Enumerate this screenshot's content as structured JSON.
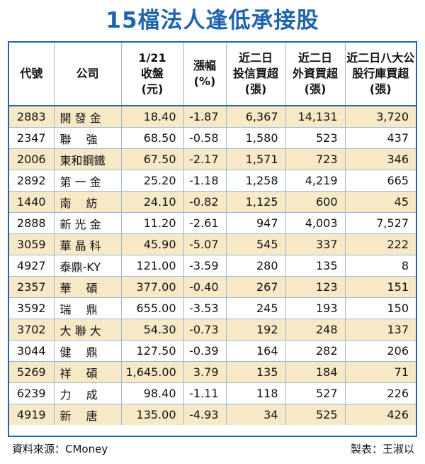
{
  "title": "15檔法人逢低承接股",
  "headers": [
    [
      "代號"
    ],
    [
      "公司"
    ],
    [
      "1/21",
      "收盤",
      "(元)"
    ],
    [
      "漲幅",
      "(%)"
    ],
    [
      "近二日",
      "投信買超",
      "(張)"
    ],
    [
      "近二日",
      "外資買超",
      "(張)"
    ],
    [
      "近二日八大公",
      "股行庫買超",
      "(張)"
    ]
  ],
  "rows": [
    [
      "2883",
      "開 發 金",
      "18.40",
      "-1.87",
      "6,367",
      "14,131",
      "3,720"
    ],
    [
      "2347",
      "聯　 強",
      "68.50",
      "-0.58",
      "1,580",
      "523",
      "437"
    ],
    [
      "2006",
      "東和鋼鐵",
      "67.50",
      "-2.17",
      "1,571",
      "723",
      "346"
    ],
    [
      "2892",
      "第 一 金",
      "25.20",
      "-1.18",
      "1,258",
      "4,219",
      "665"
    ],
    [
      "1440",
      "南　 紡",
      "24.10",
      "-0.82",
      "1,125",
      "600",
      "45"
    ],
    [
      "2888",
      "新 光 金",
      "11.20",
      "-2.61",
      "947",
      "4,003",
      "7,527"
    ],
    [
      "3059",
      "華 晶 科",
      "45.90",
      "-5.07",
      "545",
      "337",
      "222"
    ],
    [
      "4927",
      "泰鼎-KY",
      "121.00",
      "-3.59",
      "280",
      "135",
      "8"
    ],
    [
      "2357",
      "華　 碩",
      "377.00",
      "-0.40",
      "267",
      "123",
      "151"
    ],
    [
      "3592",
      "瑞　 鼎",
      "655.00",
      "-3.53",
      "245",
      "193",
      "150"
    ],
    [
      "3702",
      "大 聯 大",
      "54.30",
      "-0.73",
      "192",
      "248",
      "137"
    ],
    [
      "3044",
      "健　 鼎",
      "127.50",
      "-0.39",
      "164",
      "282",
      "206"
    ],
    [
      "5269",
      "祥　 碩",
      "1,645.00",
      "3.79",
      "135",
      "184",
      "71"
    ],
    [
      "6239",
      "力　 成",
      "98.40",
      "-1.11",
      "118",
      "527",
      "226"
    ],
    [
      "4919",
      "新　 唐",
      "135.00",
      "-4.93",
      "34",
      "525",
      "426"
    ]
  ],
  "footer": {
    "source": "資料來源：CMoney",
    "maker": "製表：王淑以"
  },
  "colors": {
    "title": "#1f64ad",
    "border": "#1f64ad",
    "row_shade": "#f7e8c6"
  }
}
